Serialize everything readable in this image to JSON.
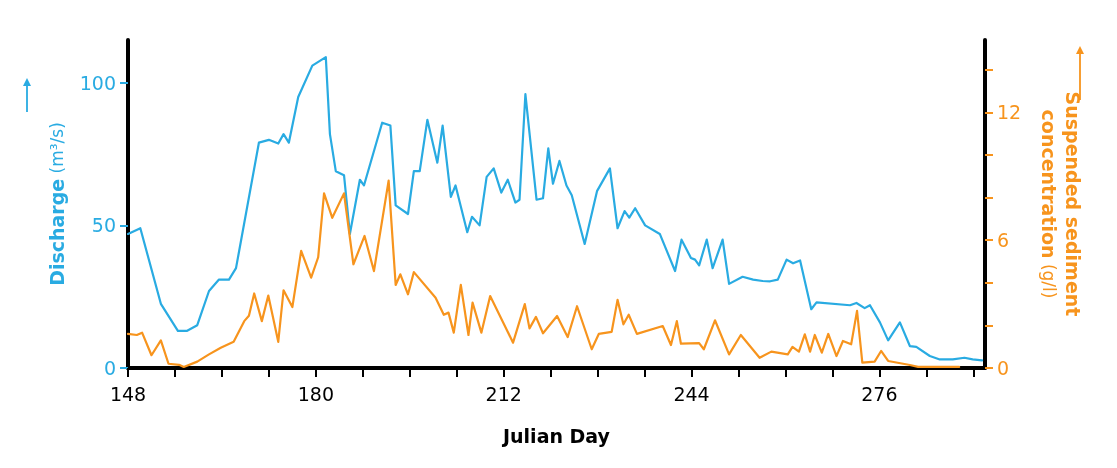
{
  "chart_data": {
    "type": "line",
    "xlabel": "Julian Day",
    "ylabel": "Discharge (m³/s)",
    "y2label": "Suspended sediment\nconcentration (g/l)",
    "xlim": [
      148,
      294
    ],
    "xticks": [
      148,
      {
        "value": 156,
        "label": null
      },
      {
        "value": 164,
        "label": null
      },
      {
        "value": 172,
        "label": null
      },
      180,
      {
        "value": 188,
        "label": null
      },
      {
        "value": 196,
        "label": null
      },
      {
        "value": 204,
        "label": null
      },
      212,
      {
        "value": 220,
        "label": null
      },
      {
        "value": 228,
        "label": null
      },
      {
        "value": 236,
        "label": null
      },
      244,
      {
        "value": 252,
        "label": null
      },
      {
        "value": 260,
        "label": null
      },
      {
        "value": 268,
        "label": null
      },
      276,
      {
        "value": 284,
        "label": null
      },
      {
        "value": 292,
        "label": null
      }
    ],
    "ylim": [
      0,
      115
    ],
    "yticks": [
      0,
      50,
      100
    ],
    "y2lim": [
      0,
      15.4
    ],
    "y2ticks": [
      0,
      {
        "value": 2,
        "label": null
      },
      {
        "value": 4,
        "label": null
      },
      6,
      {
        "value": 8,
        "label": null
      },
      {
        "value": 10,
        "label": null
      },
      12,
      {
        "value": 14,
        "label": null
      }
    ],
    "grid": false,
    "marker": "none",
    "line_style": "solid",
    "series": [
      {
        "color": "#29abe2",
        "x": [
          148,
          150.1,
          153.6,
          156.5,
          158,
          159.8,
          161.8,
          163.5,
          165.2,
          166.4,
          170.3,
          172,
          173.6,
          174.5,
          175.4,
          177,
          179.4,
          181.7,
          182.4,
          183.4,
          184.8,
          185.8,
          187.5,
          188.2,
          191.3,
          192.7,
          193.6,
          195.7,
          196.7,
          197.7,
          199,
          200.7,
          201.6,
          203,
          203.8,
          205.8,
          206.6,
          207.9,
          209.1,
          210.3,
          211.6,
          212.7,
          214,
          214.7,
          215.7,
          217.6,
          218.7,
          219.6,
          220.4,
          221.5,
          222.7,
          223.6,
          225.8,
          227.9,
          230.1,
          231.4,
          232.6,
          233.4,
          234.4,
          236.1,
          238.6,
          241.2,
          242.3,
          243.9,
          244.6,
          245.3,
          246.6,
          247.6,
          249.3,
          250.4,
          252.7,
          254.5,
          256.1,
          257.4,
          258.7,
          260.2,
          261.3,
          262.5,
          264.4,
          265.3,
          271,
          272.1,
          273.5,
          274.4,
          276.1,
          277.5,
          279.5,
          281.2,
          282.3,
          284.6,
          286.3,
          288.5,
          290.5,
          291.9,
          293.5
        ],
        "values": [
          47,
          49,
          22.5,
          13,
          13,
          15,
          27,
          31,
          31,
          35,
          79,
          80,
          78.7,
          82,
          79,
          95,
          106,
          109,
          82,
          69,
          67.6,
          47,
          66,
          64,
          86,
          85,
          57,
          54,
          69,
          69,
          87,
          72,
          85,
          60,
          64,
          47.6,
          53,
          50,
          67,
          70,
          61.5,
          66,
          58,
          59,
          96,
          59,
          59.5,
          77,
          64.6,
          72.6,
          64,
          60.6,
          43.5,
          62,
          70,
          49,
          55,
          52.7,
          56,
          50,
          47,
          34,
          45,
          38.6,
          38,
          36,
          45,
          35,
          45,
          29.5,
          32,
          31,
          30.5,
          30.4,
          31,
          38,
          36.7,
          37.7,
          20.6,
          23,
          22,
          22.8,
          21,
          22,
          16,
          9.7,
          16,
          7.7,
          7.4,
          4.2,
          3,
          3,
          3.6,
          3,
          2.7
        ]
      },
      {
        "color": "#f7941d",
        "axis": "y2",
        "x": [
          148,
          149.5,
          150.4,
          152,
          153.6,
          154.9,
          156.7,
          157.5,
          159.8,
          161.8,
          163.8,
          166,
          167.8,
          168.6,
          169.5,
          170.8,
          171.9,
          173.6,
          174.5,
          176,
          177.5,
          179.2,
          180.4,
          181.4,
          182.8,
          184.8,
          186.4,
          188.3,
          189.9,
          192.4,
          193.6,
          194.4,
          195.7,
          196.7,
          200.4,
          201.8,
          202.6,
          203.5,
          204.7,
          206,
          206.7,
          208.2,
          209.7,
          213.6,
          215.6,
          216.4,
          217.5,
          218.7,
          221.1,
          222.9,
          224.5,
          227,
          228.2,
          230.4,
          231.4,
          232.4,
          233.3,
          234.7,
          239.1,
          240.5,
          241.5,
          242.2,
          245.3,
          246.1,
          248,
          250.4,
          252.4,
          255.6,
          257.6,
          260.4,
          261.2,
          262.3,
          263.3,
          264.2,
          265,
          266.2,
          267.3,
          268.7,
          269.8,
          271.2,
          272.2,
          273.1,
          275.2,
          276.3,
          277.5,
          281.2,
          282.6,
          289.6
        ],
        "values": [
          1.6,
          1.55,
          1.66,
          0.6,
          1.3,
          0.2,
          0.15,
          0.05,
          0.3,
          0.64,
          0.95,
          1.23,
          2.2,
          2.45,
          3.5,
          2.2,
          3.4,
          1.23,
          3.65,
          2.86,
          5.5,
          4.24,
          5.2,
          8.2,
          7.05,
          8.2,
          4.87,
          6.2,
          4.55,
          8.8,
          3.9,
          4.4,
          3.46,
          4.5,
          3.3,
          2.5,
          2.6,
          1.66,
          3.9,
          1.55,
          3.07,
          1.66,
          3.38,
          1.19,
          3,
          1.86,
          2.4,
          1.63,
          2.44,
          1.45,
          2.9,
          0.88,
          1.6,
          1.7,
          3.2,
          2.05,
          2.5,
          1.6,
          1.97,
          1.08,
          2.2,
          1.14,
          1.17,
          0.88,
          2.24,
          0.64,
          1.55,
          0.48,
          0.77,
          0.64,
          0.99,
          0.77,
          1.58,
          0.77,
          1.55,
          0.72,
          1.6,
          0.56,
          1.27,
          1.11,
          2.68,
          0.25,
          0.3,
          0.8,
          0.33,
          0.14,
          0.05,
          0.05
        ]
      }
    ]
  }
}
